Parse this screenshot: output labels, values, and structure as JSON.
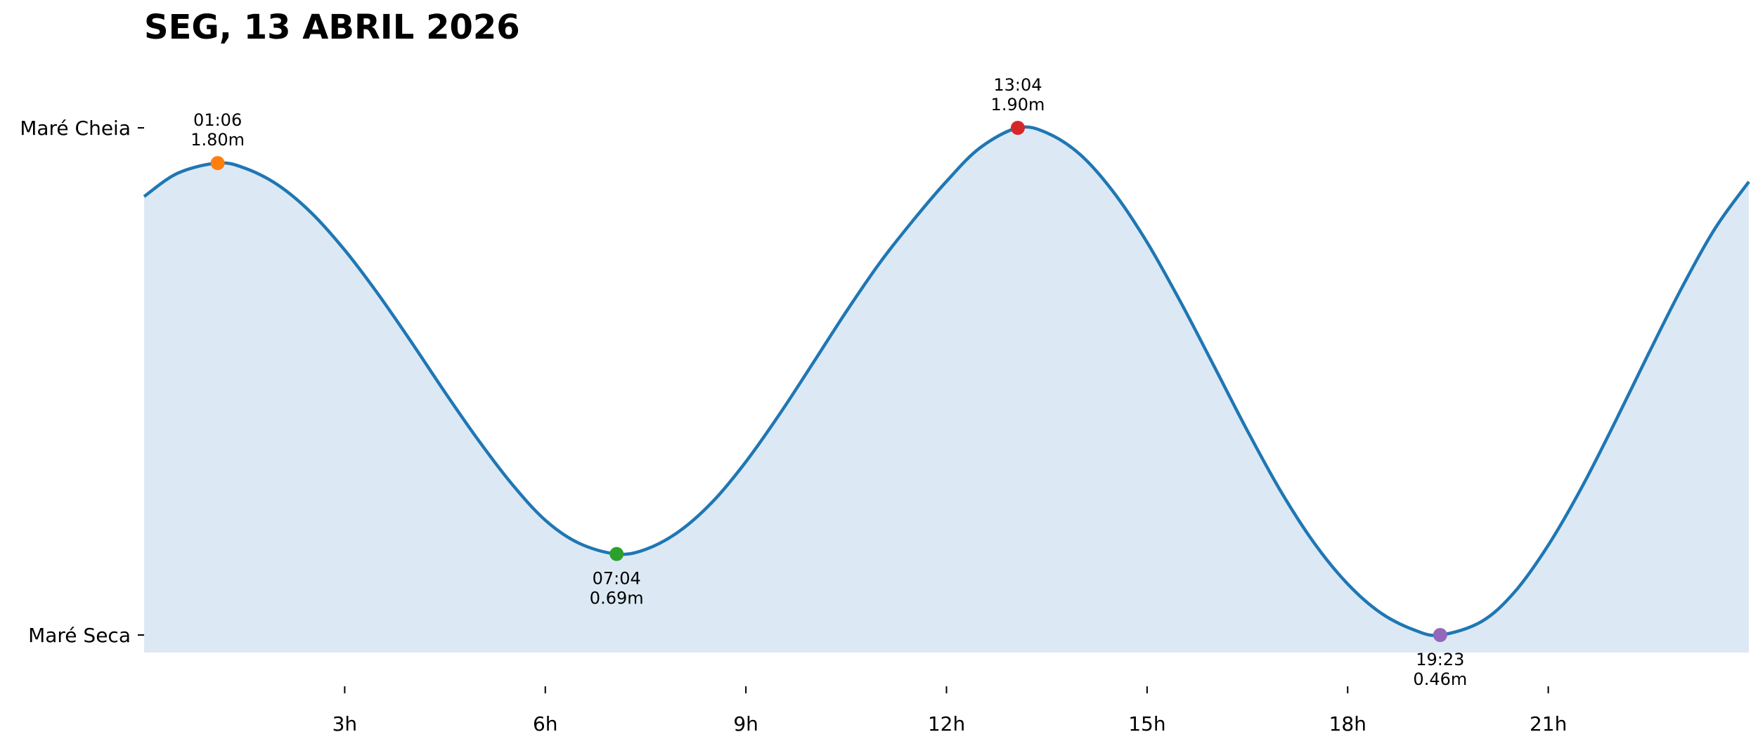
{
  "chart_data": {
    "type": "area",
    "title": "SEG, 13 ABRIL 2026",
    "xlabel": "",
    "ylabel": "",
    "xlim": [
      0,
      24
    ],
    "ylim": [
      0.36,
      2.0
    ],
    "x_ticks": [
      3,
      6,
      9,
      12,
      15,
      18,
      21
    ],
    "x_tick_labels": [
      "3h",
      "6h",
      "9h",
      "12h",
      "15h",
      "18h",
      "21h"
    ],
    "y_ticks": [
      1.9,
      0.46
    ],
    "y_tick_labels": [
      "Maré Cheia",
      "Maré Seca"
    ],
    "line_color": "#1f77b4",
    "fill_color": "#dce9f4",
    "grid": false,
    "extremes": [
      {
        "time": "01:06",
        "hour": 1.1,
        "height": 1.8,
        "label": "1.80m",
        "type": "high",
        "color": "#ff7f0e"
      },
      {
        "time": "07:04",
        "hour": 7.0667,
        "height": 0.69,
        "label": "0.69m",
        "type": "low",
        "color": "#2ca02c"
      },
      {
        "time": "13:04",
        "hour": 13.0667,
        "height": 1.9,
        "label": "1.90m",
        "type": "high",
        "color": "#d62728"
      },
      {
        "time": "19:23",
        "hour": 19.3833,
        "height": 0.46,
        "label": "0.46m",
        "type": "low",
        "color": "#9467bd"
      }
    ],
    "series": [
      {
        "x": [
          0,
          0.5,
          1.1,
          1.5,
          2,
          2.5,
          3,
          3.5,
          4,
          4.5,
          5,
          5.5,
          6,
          6.5,
          7.0667,
          7.5,
          8,
          8.5,
          9,
          9.5,
          10,
          10.5,
          11,
          11.5,
          12,
          12.5,
          13.0667,
          13.5,
          14,
          14.5,
          15,
          15.5,
          16,
          16.5,
          17,
          17.5,
          18,
          18.5,
          19,
          19.3833,
          20,
          20.5,
          21,
          21.5,
          22,
          22.5,
          23,
          23.5,
          24
        ],
        "y": [
          1.705,
          1.771,
          1.8,
          1.786,
          1.738,
          1.659,
          1.553,
          1.428,
          1.291,
          1.149,
          1.013,
          0.889,
          0.786,
          0.721,
          0.69,
          0.703,
          0.754,
          0.838,
          0.952,
          1.086,
          1.231,
          1.378,
          1.516,
          1.637,
          1.748,
          1.843,
          1.9,
          1.886,
          1.824,
          1.717,
          1.575,
          1.406,
          1.224,
          1.04,
          0.868,
          0.721,
          0.605,
          0.522,
          0.474,
          0.46,
          0.498,
          0.583,
          0.715,
          0.879,
          1.065,
          1.259,
          1.447,
          1.616,
          1.747
        ]
      }
    ]
  }
}
